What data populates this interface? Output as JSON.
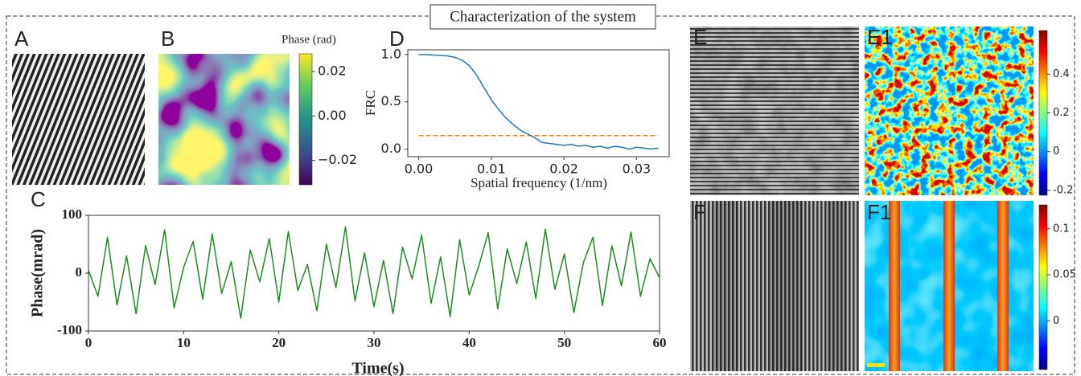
{
  "title": "Characterization of the system",
  "chart_data": [
    {
      "type": "image",
      "label": "A"
    },
    {
      "type": "heatmap",
      "label": "B",
      "colormap": "viridis",
      "colorbar_title": "Phase (rad)",
      "clim": [
        -0.031,
        0.028
      ],
      "cticks": [
        0.02,
        {
          "value": 0,
          "label": "0.00"
        },
        {
          "value": -0.02,
          "label": "−0.02"
        }
      ]
    },
    {
      "type": "line",
      "label": "C",
      "xlabel": "Time(s)",
      "ylabel": "Phase(mrad)",
      "x": [
        0,
        1,
        2,
        3,
        4,
        5,
        6,
        7,
        8,
        9,
        10,
        11,
        12,
        13,
        14,
        15,
        16,
        17,
        18,
        19,
        20,
        21,
        22,
        23,
        24,
        25,
        26,
        27,
        28,
        29,
        30,
        31,
        32,
        33,
        34,
        35,
        36,
        37,
        38,
        39,
        40,
        41,
        42,
        43,
        44,
        45,
        46,
        47,
        48,
        49,
        50,
        51,
        52,
        53,
        54,
        55,
        56,
        57,
        58,
        59,
        60
      ],
      "series": [
        {
          "color": "#1e8c1e",
          "values": [
            5,
            -40,
            62,
            -55,
            30,
            -70,
            48,
            -20,
            75,
            -60,
            10,
            55,
            -45,
            68,
            -35,
            20,
            -78,
            40,
            -15,
            60,
            -50,
            72,
            -30,
            15,
            -65,
            50,
            -25,
            80,
            -48,
            35,
            -58,
            22,
            -70,
            45,
            -10,
            66,
            -52,
            28,
            -75,
            58,
            -38,
            12,
            70,
            -62,
            42,
            -18,
            54,
            -44,
            76,
            -28,
            33,
            -68,
            18,
            62,
            -56,
            47,
            -22,
            71,
            -40,
            25,
            -8
          ]
        }
      ],
      "xlim": [
        0,
        60
      ],
      "xticks": [
        0,
        10,
        20,
        30,
        40,
        50,
        60
      ],
      "ylim": [
        -100,
        100
      ],
      "yticks": [
        -100,
        0,
        100
      ]
    },
    {
      "type": "line",
      "label": "D",
      "xlabel": "Spatial frequency (1/nm)",
      "ylabel": "FRC",
      "x": [
        0,
        0.001,
        0.002,
        0.003,
        0.004,
        0.005,
        0.006,
        0.007,
        0.008,
        0.009,
        0.01,
        0.011,
        0.012,
        0.013,
        0.014,
        0.015,
        0.016,
        0.017,
        0.018,
        0.019,
        0.02,
        0.021,
        0.022,
        0.023,
        0.024,
        0.025,
        0.026,
        0.027,
        0.028,
        0.029,
        0.03,
        0.031,
        0.032,
        0.033
      ],
      "series": [
        {
          "color": "#1f77b4",
          "values": [
            1,
            1,
            0.995,
            0.99,
            0.985,
            0.97,
            0.94,
            0.88,
            0.78,
            0.65,
            0.52,
            0.42,
            0.33,
            0.26,
            0.2,
            0.16,
            0.12,
            0.07,
            0.06,
            0.05,
            0.04,
            0.05,
            0.03,
            0.04,
            0.02,
            0.03,
            0.01,
            0.03,
            0.02,
            0,
            0.02,
            0.01,
            0,
            0.01
          ]
        }
      ],
      "hlines": [
        0.143
      ],
      "hline_color": "#ff7f0e",
      "xlim": [
        -0.0015,
        0.0345
      ],
      "xticks": [
        {
          "value": 0,
          "label": "0.00"
        },
        0.01,
        0.02,
        0.03
      ],
      "ylim": [
        -0.08,
        1.05
      ],
      "yticks": [
        {
          "value": 0,
          "label": "0.0"
        },
        0.5,
        {
          "value": 1,
          "label": "1.0"
        }
      ]
    },
    {
      "type": "image",
      "label": "E",
      "label_color": "#f2e01a"
    },
    {
      "type": "heatmap",
      "label": "E1",
      "colormap": "jet",
      "clim": [
        -0.225,
        0.625
      ],
      "cticks": [
        0.4,
        0.2,
        0,
        -0.2
      ]
    },
    {
      "type": "image",
      "label": "F",
      "label_color": "#f2e01a"
    },
    {
      "type": "heatmap",
      "label": "F1",
      "colormap": "jet",
      "clim": [
        -0.053,
        0.126
      ],
      "cticks": [
        0.1,
        0.05,
        0
      ]
    }
  ]
}
